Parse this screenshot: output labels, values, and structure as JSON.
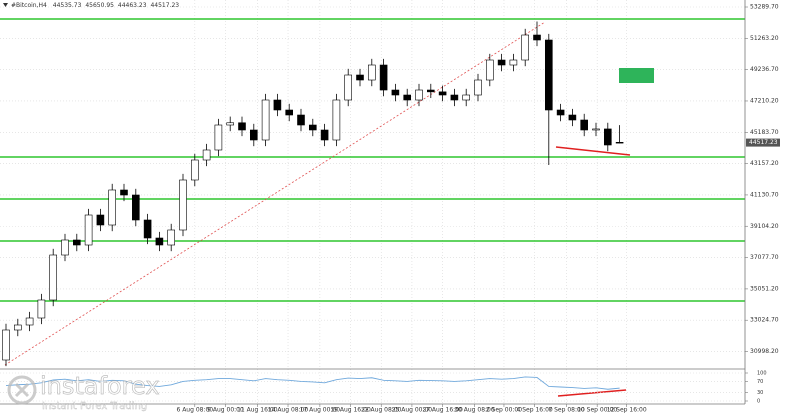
{
  "chart_data": {
    "type": "candlestick",
    "title": "#Bitcoin,H4",
    "open": [
      30451,
      32392,
      32715,
      33168,
      34333,
      37244,
      38215,
      37891,
      39832,
      39185,
      41450,
      41126,
      39509,
      38344,
      37891,
      38862,
      42097,
      43391,
      44038,
      45655,
      45800,
      45332,
      44685,
      47273,
      46626,
      46302,
      45655,
      45332,
      44685,
      47273,
      48890,
      48566,
      49537,
      47919,
      47596,
      47273,
      47919,
      47800,
      47596,
      47273,
      47596,
      48566,
      49860,
      49537,
      49860,
      51478,
      51155,
      46626,
      46302,
      45979,
      45332,
      45400,
      44535.73
    ],
    "high": [
      32792,
      33115,
      33568,
      34733,
      37644,
      38615,
      38615,
      40232,
      40232,
      41850,
      41850,
      41526,
      39909,
      38744,
      39262,
      42497,
      43791,
      44438,
      46055,
      46200,
      46200,
      45732,
      47673,
      47673,
      47026,
      46702,
      46055,
      45732,
      47673,
      49290,
      49290,
      49937,
      49937,
      48319,
      47996,
      48319,
      48319,
      48200,
      47996,
      47996,
      48966,
      50260,
      50260,
      50260,
      51878,
      52350,
      51555,
      47026,
      46702,
      46379,
      45800,
      45800,
      45650.95
    ],
    "low": [
      30051,
      31992,
      32315,
      32768,
      33933,
      36844,
      37491,
      37491,
      38785,
      38785,
      40726,
      39109,
      37944,
      37491,
      37491,
      38462,
      41697,
      42991,
      43638,
      45255,
      44932,
      44285,
      44285,
      46226,
      45902,
      45255,
      44932,
      44285,
      44285,
      46873,
      48166,
      48166,
      47519,
      47196,
      46873,
      46873,
      47400,
      47196,
      46873,
      46873,
      47196,
      48166,
      49137,
      49137,
      49460,
      50755,
      43067,
      45902,
      45579,
      44932,
      44932,
      43961,
      44463.23
    ],
    "close": [
      32392,
      32715,
      33168,
      34333,
      37244,
      38215,
      37891,
      39832,
      39185,
      41450,
      41126,
      39509,
      38344,
      37891,
      38862,
      42097,
      43391,
      44038,
      45655,
      45800,
      45332,
      44685,
      47273,
      46626,
      46302,
      45655,
      45332,
      44685,
      47273,
      48890,
      48566,
      49537,
      47919,
      47596,
      47273,
      47919,
      47800,
      47596,
      47273,
      47596,
      48566,
      49860,
      49537,
      49860,
      51478,
      51155,
      46626,
      46302,
      45979,
      45332,
      45400,
      44361,
      44517.23
    ],
    "up_color": "#ffffff",
    "down_color": "#000000",
    "ylim": [
      29933,
      53743
    ],
    "yticks": [
      {
        "value": 53289.7,
        "label": "53289.70"
      },
      {
        "value": 51263.2,
        "label": "51263.20"
      },
      {
        "value": 49236.7,
        "label": "49236.70"
      },
      {
        "value": 47210.2,
        "label": "47210.20"
      },
      {
        "value": 45183.7,
        "label": "45183.70"
      },
      {
        "value": 43157.2,
        "label": "43157.20"
      },
      {
        "value": 41130.7,
        "label": "41130.70"
      },
      {
        "value": 39104.2,
        "label": "39104.20"
      },
      {
        "value": 37077.7,
        "label": "37077.70"
      },
      {
        "value": 35051.2,
        "label": "35051.20"
      },
      {
        "value": 33024.7,
        "label": "33024.70"
      },
      {
        "value": 30998.2,
        "label": "30998.20"
      }
    ],
    "xticks": [
      {
        "value": 16.0,
        "label": "6 Aug 08:00"
      },
      {
        "value": 18.6,
        "label": "9 Aug 00:00"
      },
      {
        "value": 21.3,
        "label": "11 Aug 16:00"
      },
      {
        "value": 23.9,
        "label": "14 Aug 08:00"
      },
      {
        "value": 26.6,
        "label": "17 Aug 00:00"
      },
      {
        "value": 29.2,
        "label": "19 Aug 16:00"
      },
      {
        "value": 31.8,
        "label": "22 Aug 08:00"
      },
      {
        "value": 34.4,
        "label": "25 Aug 00:00"
      },
      {
        "value": 37.0,
        "label": "27 Aug 16:00"
      },
      {
        "value": 39.7,
        "label": "30 Aug 08:00"
      },
      {
        "value": 42.2,
        "label": "2 Sep 00:00"
      },
      {
        "value": 44.8,
        "label": "4 Sep 16:00"
      },
      {
        "value": 47.5,
        "label": "7 Sep 08:00"
      },
      {
        "value": 50.1,
        "label": "10 Sep 00:00"
      },
      {
        "value": 52.6,
        "label": "12 Sep 16:00"
      }
    ],
    "grid": true,
    "levels": [
      52513,
      43585,
      40868,
      38150,
      34268
    ],
    "level_color": "#2ec62e",
    "rsi": {
      "values": [
        55,
        58,
        60,
        65,
        75,
        78,
        72,
        76,
        70,
        74,
        72,
        60,
        55,
        52,
        58,
        70,
        74,
        76,
        80,
        80,
        76,
        72,
        80,
        76,
        74,
        70,
        68,
        65,
        76,
        82,
        80,
        83,
        74,
        72,
        70,
        74,
        73,
        72,
        70,
        72,
        76,
        80,
        78,
        80,
        86,
        84,
        52,
        50,
        48,
        45,
        47,
        42,
        46
      ],
      "ylim": [
        0,
        100
      ],
      "yticks": [
        100,
        70,
        30,
        0
      ],
      "color": "#6fa8dc"
    }
  },
  "watermark": {
    "brand": "instaforex",
    "tagline": "Instant Forex Trading"
  }
}
